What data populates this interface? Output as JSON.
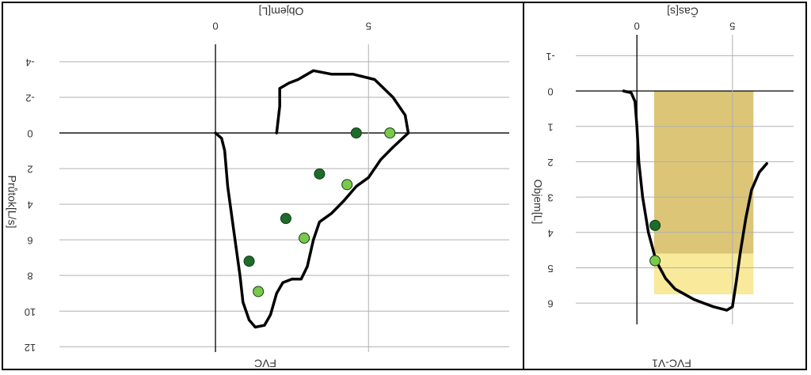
{
  "chart_data": [
    {
      "type": "line",
      "name": "flow-volume-loop",
      "title": "",
      "footer_label": "FVC",
      "xlabel": "Objem[L]",
      "ylabel": "Průtok[L/s]",
      "x_ticks": [
        0,
        5
      ],
      "y_ticks": [
        -4,
        -2,
        0,
        2,
        4,
        6,
        8,
        10,
        12
      ],
      "xlim": [
        -5.1,
        9.6
      ],
      "ylim": [
        -4.8,
        12.3
      ],
      "inverted_orientation": "rotated 180 degrees",
      "series": [
        {
          "name": "",
          "color": "#000000",
          "points": [
            [
              0,
              0
            ],
            [
              0.2,
              0.3
            ],
            [
              0.3,
              1
            ],
            [
              0.4,
              3
            ],
            [
              0.6,
              5.5
            ],
            [
              0.8,
              8
            ],
            [
              0.9,
              9.5
            ],
            [
              1.1,
              10.5
            ],
            [
              1.3,
              10.9
            ],
            [
              1.6,
              10.8
            ],
            [
              1.8,
              10.2
            ],
            [
              2,
              9
            ],
            [
              2.2,
              8.4
            ],
            [
              2.5,
              8.2
            ],
            [
              2.8,
              8.2
            ],
            [
              3,
              7.5
            ],
            [
              3.2,
              6
            ],
            [
              3.4,
              5
            ],
            [
              3.8,
              4.5
            ],
            [
              4.2,
              3.8
            ],
            [
              4.6,
              3
            ],
            [
              5,
              2.5
            ],
            [
              5.4,
              1.5
            ],
            [
              5.8,
              0.8
            ],
            [
              6.3,
              0
            ],
            [
              6.2,
              -1
            ],
            [
              5.8,
              -2
            ],
            [
              5.2,
              -3
            ],
            [
              4.5,
              -3.3
            ],
            [
              3.8,
              -3.3
            ],
            [
              3.2,
              -3.5
            ],
            [
              2.7,
              -3
            ],
            [
              2.4,
              -2.8
            ],
            [
              2.1,
              -2.5
            ],
            [
              2.1,
              -1.5
            ],
            [
              2,
              0
            ]
          ]
        }
      ],
      "markers": [
        {
          "x": 4.6,
          "y": 0,
          "color": "#1e6b2a"
        },
        {
          "x": 5.7,
          "y": 0,
          "color": "#7bc94c"
        },
        {
          "x": 3.4,
          "y": 2.3,
          "color": "#1e6b2a"
        },
        {
          "x": 4.3,
          "y": 2.9,
          "color": "#7bc94c"
        },
        {
          "x": 2.3,
          "y": 4.8,
          "color": "#1e6b2a"
        },
        {
          "x": 2.9,
          "y": 5.9,
          "color": "#7bc94c"
        },
        {
          "x": 1.1,
          "y": 7.2,
          "color": "#1e6b2a"
        },
        {
          "x": 1.4,
          "y": 8.9,
          "color": "#7bc94c"
        }
      ]
    },
    {
      "type": "line",
      "name": "volume-time",
      "title": "",
      "footer_label": "FVC-V1",
      "xlabel": "Čas[s]",
      "ylabel": "Objem[L]",
      "x_ticks": [
        0,
        5
      ],
      "y_ticks": [
        -1,
        0,
        1,
        2,
        3,
        4,
        5,
        6
      ],
      "xlim": [
        -3.2,
        8.2
      ],
      "ylim": [
        -1.5,
        6.6
      ],
      "inverted_orientation": "rotated 180 degrees",
      "bands": [
        {
          "x0": 0.9,
          "x1": 6.1,
          "y0": 0,
          "y1": 4.6,
          "color": "#dcc577"
        },
        {
          "x0": 0.9,
          "x1": 6.1,
          "y0": 4.6,
          "y1": 5.75,
          "color": "#f8e99b"
        }
      ],
      "series": [
        {
          "name": "",
          "color": "#000000",
          "points": [
            [
              -0.7,
              0
            ],
            [
              -0.3,
              0.05
            ],
            [
              -0.1,
              0.3
            ],
            [
              0,
              1
            ],
            [
              0.1,
              2
            ],
            [
              0.3,
              3
            ],
            [
              0.6,
              4
            ],
            [
              1,
              4.8
            ],
            [
              1.5,
              5.3
            ],
            [
              2,
              5.6
            ],
            [
              3,
              5.9
            ],
            [
              4,
              6.1
            ],
            [
              4.7,
              6.2
            ],
            [
              5,
              6.1
            ],
            [
              5.2,
              5.4
            ],
            [
              5.4,
              4.6
            ],
            [
              5.7,
              3.6
            ],
            [
              6,
              2.8
            ],
            [
              6.4,
              2.3
            ],
            [
              6.8,
              2.05
            ]
          ]
        }
      ],
      "markers": [
        {
          "x": 0.95,
          "y": 3.8,
          "color": "#1e6b2a"
        },
        {
          "x": 0.95,
          "y": 4.8,
          "color": "#7bc94c"
        }
      ]
    }
  ]
}
